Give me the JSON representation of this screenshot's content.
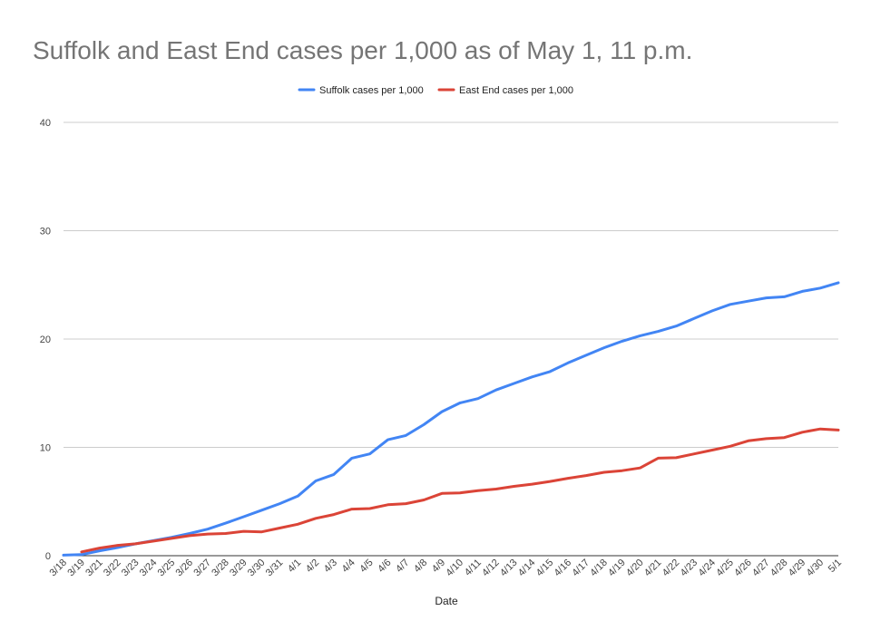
{
  "chart_data": {
    "type": "line",
    "title": "Suffolk and East End cases per 1,000 as of May 1, 11 p.m.",
    "xlabel": "Date",
    "ylabel": "",
    "ylim": [
      0,
      40
    ],
    "yticks": [
      0,
      10,
      20,
      30,
      40
    ],
    "grid": true,
    "legend_position": "top",
    "categories": [
      "3/18",
      "3/19",
      "3/21",
      "3/22",
      "3/23",
      "3/24",
      "3/25",
      "3/26",
      "3/27",
      "3/28",
      "3/29",
      "3/30",
      "3/31",
      "4/1",
      "4/2",
      "4/3",
      "4/4",
      "4/5",
      "4/6",
      "4/7",
      "4/8",
      "4/9",
      "4/10",
      "4/11",
      "4/12",
      "4/13",
      "4/14",
      "4/15",
      "4/16",
      "4/17",
      "4/18",
      "4/19",
      "4/20",
      "4/21",
      "4/22",
      "4/23",
      "4/24",
      "4/25",
      "4/26",
      "4/27",
      "4/28",
      "4/29",
      "4/30",
      "5/1"
    ],
    "series": [
      {
        "name": "Suffolk cases per 1,000",
        "color": "#4285f4",
        "values": [
          0.05,
          0.1,
          0.45,
          0.75,
          1.1,
          1.4,
          1.7,
          2.05,
          2.45,
          3.0,
          3.6,
          4.2,
          4.8,
          5.5,
          6.9,
          7.5,
          9.0,
          9.4,
          10.7,
          11.1,
          12.1,
          13.3,
          14.1,
          14.5,
          15.3,
          15.9,
          16.5,
          17.0,
          17.8,
          18.5,
          19.2,
          19.8,
          20.3,
          20.7,
          21.2,
          21.9,
          22.6,
          23.2,
          23.5,
          23.8,
          23.9,
          24.4,
          24.7,
          25.2
        ]
      },
      {
        "name": "East End cases per 1,000",
        "color": "#db4437",
        "values": [
          null,
          0.35,
          0.7,
          0.95,
          1.1,
          1.35,
          1.6,
          1.85,
          2.0,
          2.05,
          2.25,
          2.2,
          2.55,
          2.9,
          3.45,
          3.8,
          4.3,
          4.35,
          4.7,
          4.8,
          5.15,
          5.75,
          5.8,
          6.0,
          6.15,
          6.4,
          6.6,
          6.85,
          7.15,
          7.4,
          7.7,
          7.85,
          8.1,
          9.0,
          9.05,
          9.4,
          9.75,
          10.1,
          10.6,
          10.8,
          10.9,
          11.4,
          11.7,
          11.6
        ]
      }
    ]
  }
}
